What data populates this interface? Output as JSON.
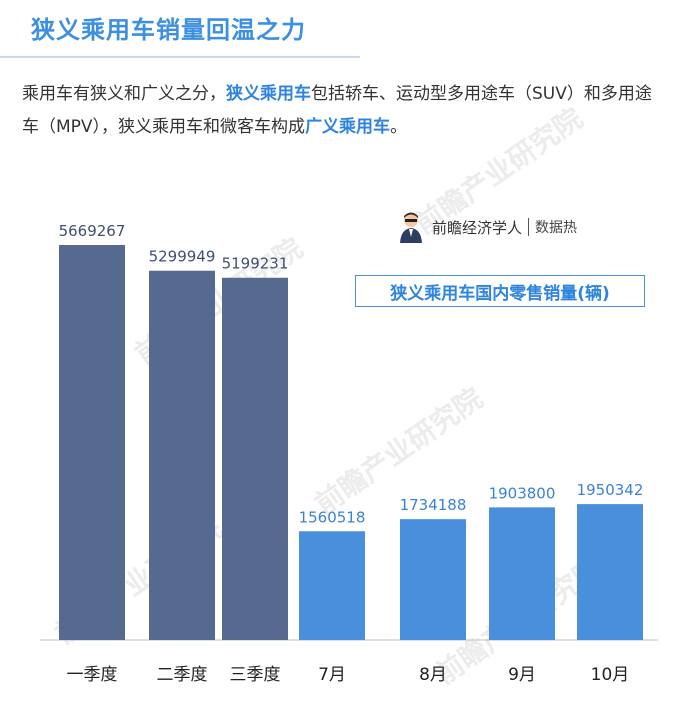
{
  "header": {
    "title": "狭义乘用车销量回温之力"
  },
  "intro": {
    "part1": "乘用车有狭义和广义之分，",
    "hl1": "狭义乘用车",
    "part2": "包括轿车、运动型多用途车（SUV）和多用途车（MPV），狭义乘用车和微客车构成",
    "hl2": "广义乘用车",
    "part3": "。"
  },
  "brand": {
    "name": "前瞻经济学人",
    "sub": "数据热"
  },
  "watermark": "前瞻产业研究院",
  "chart_data": {
    "type": "bar",
    "title": "狭义乘用车国内零售销量(辆)",
    "categories": [
      "一季度",
      "二季度",
      "三季度",
      "7月",
      "8月",
      "9月",
      "10月"
    ],
    "values": [
      5669267,
      5299949,
      5199231,
      1560518,
      1734188,
      1903800,
      1950342
    ],
    "bar_colors": [
      "#56698f",
      "#56698f",
      "#56698f",
      "#4a8fdb",
      "#4a8fdb",
      "#4a8fdb",
      "#4a8fdb"
    ],
    "label_colors": [
      "#3f4f73",
      "#3f4f73",
      "#3f4f73",
      "#3a82d6",
      "#3a82d6",
      "#3a82d6",
      "#3a82d6"
    ],
    "ylim": [
      0,
      5669267
    ],
    "grid": false
  }
}
